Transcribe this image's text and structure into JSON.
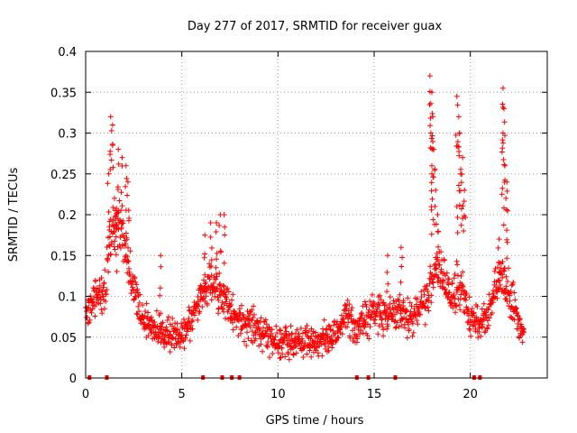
{
  "chart_data": {
    "type": "scatter",
    "title": "Day 277 of 2017, SRMTID for receiver guax",
    "xlabel": "GPS time / hours",
    "ylabel": "SRMTID / TECUs",
    "xlim": [
      0,
      24
    ],
    "ylim": [
      0,
      0.4
    ],
    "x_ticks": [
      0,
      5,
      10,
      15,
      20
    ],
    "x_tick_labels": [
      "0",
      "5",
      "10",
      "15",
      "20"
    ],
    "y_ticks": [
      0,
      0.05,
      0.1,
      0.15,
      0.2,
      0.25,
      0.3,
      0.35,
      0.4
    ],
    "y_tick_labels": [
      "0",
      "0.05",
      "0.1",
      "0.15",
      "0.2",
      "0.25",
      "0.3",
      "0.35",
      "0.4"
    ],
    "grid": true,
    "marker": "+",
    "color": "#ff0000",
    "series": [
      {
        "name": "SRMTID",
        "envelope": [
          {
            "x": 0.0,
            "y": 0.08
          },
          {
            "x": 0.5,
            "y": 0.1
          },
          {
            "x": 1.0,
            "y": 0.11
          },
          {
            "x": 1.3,
            "y": 0.18
          },
          {
            "x": 1.6,
            "y": 0.2
          },
          {
            "x": 2.0,
            "y": 0.17
          },
          {
            "x": 2.4,
            "y": 0.12
          },
          {
            "x": 3.0,
            "y": 0.07
          },
          {
            "x": 4.0,
            "y": 0.055
          },
          {
            "x": 5.0,
            "y": 0.05
          },
          {
            "x": 5.5,
            "y": 0.07
          },
          {
            "x": 6.0,
            "y": 0.1
          },
          {
            "x": 6.5,
            "y": 0.12
          },
          {
            "x": 7.0,
            "y": 0.1
          },
          {
            "x": 8.0,
            "y": 0.07
          },
          {
            "x": 9.0,
            "y": 0.06
          },
          {
            "x": 10.0,
            "y": 0.045
          },
          {
            "x": 11.0,
            "y": 0.045
          },
          {
            "x": 12.0,
            "y": 0.045
          },
          {
            "x": 13.0,
            "y": 0.05
          },
          {
            "x": 13.5,
            "y": 0.08
          },
          {
            "x": 14.0,
            "y": 0.06
          },
          {
            "x": 14.5,
            "y": 0.07
          },
          {
            "x": 15.0,
            "y": 0.08
          },
          {
            "x": 16.0,
            "y": 0.08
          },
          {
            "x": 17.0,
            "y": 0.075
          },
          {
            "x": 17.8,
            "y": 0.1
          },
          {
            "x": 18.2,
            "y": 0.14
          },
          {
            "x": 18.6,
            "y": 0.12
          },
          {
            "x": 19.0,
            "y": 0.1
          },
          {
            "x": 19.5,
            "y": 0.11
          },
          {
            "x": 20.0,
            "y": 0.07
          },
          {
            "x": 20.5,
            "y": 0.07
          },
          {
            "x": 21.0,
            "y": 0.08
          },
          {
            "x": 21.5,
            "y": 0.13
          },
          {
            "x": 22.0,
            "y": 0.11
          },
          {
            "x": 22.5,
            "y": 0.07
          },
          {
            "x": 22.8,
            "y": 0.05
          }
        ],
        "spread": 0.035,
        "spikes": [
          {
            "x": 1.3,
            "y": 0.32
          },
          {
            "x": 1.4,
            "y": 0.31
          },
          {
            "x": 1.7,
            "y": 0.28
          },
          {
            "x": 1.9,
            "y": 0.27
          },
          {
            "x": 2.1,
            "y": 0.26
          },
          {
            "x": 1.2,
            "y": 0.25
          },
          {
            "x": 2.2,
            "y": 0.24
          },
          {
            "x": 1.5,
            "y": 0.22
          },
          {
            "x": 1.6,
            "y": 0.2
          },
          {
            "x": 6.5,
            "y": 0.19
          },
          {
            "x": 6.8,
            "y": 0.19
          },
          {
            "x": 7.0,
            "y": 0.2
          },
          {
            "x": 7.2,
            "y": 0.2
          },
          {
            "x": 6.2,
            "y": 0.175
          },
          {
            "x": 3.9,
            "y": 0.15
          },
          {
            "x": 17.9,
            "y": 0.37
          },
          {
            "x": 18.0,
            "y": 0.35
          },
          {
            "x": 18.05,
            "y": 0.32
          },
          {
            "x": 17.95,
            "y": 0.3
          },
          {
            "x": 18.1,
            "y": 0.28
          },
          {
            "x": 18.0,
            "y": 0.26
          },
          {
            "x": 18.3,
            "y": 0.2
          },
          {
            "x": 18.2,
            "y": 0.23
          },
          {
            "x": 19.3,
            "y": 0.345
          },
          {
            "x": 19.4,
            "y": 0.32
          },
          {
            "x": 19.45,
            "y": 0.3
          },
          {
            "x": 19.6,
            "y": 0.27
          },
          {
            "x": 19.5,
            "y": 0.25
          },
          {
            "x": 19.7,
            "y": 0.23
          },
          {
            "x": 19.3,
            "y": 0.21
          },
          {
            "x": 21.7,
            "y": 0.355
          },
          {
            "x": 21.75,
            "y": 0.33
          },
          {
            "x": 21.7,
            "y": 0.3
          },
          {
            "x": 21.8,
            "y": 0.26
          },
          {
            "x": 21.9,
            "y": 0.24
          },
          {
            "x": 21.85,
            "y": 0.22
          },
          {
            "x": 21.5,
            "y": 0.17
          },
          {
            "x": 16.4,
            "y": 0.16
          },
          {
            "x": 15.7,
            "y": 0.15
          }
        ]
      }
    ],
    "gap_markers_x": [
      0.2,
      1.1,
      6.1,
      7.1,
      7.6,
      8.0,
      14.1,
      14.7,
      16.1,
      20.2,
      20.5
    ]
  }
}
